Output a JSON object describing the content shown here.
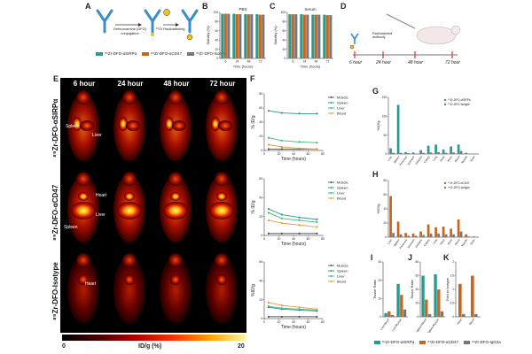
{
  "panels": {
    "A": "A",
    "B": "B",
    "C": "C",
    "D": "D",
    "E": "E",
    "F": "F",
    "G": "G",
    "H": "H",
    "I": "I",
    "J": "J",
    "K": "K"
  },
  "panelA": {
    "step1": "Deferoxamine (DFO)\nconjugation",
    "step2": "⁸⁹Zr Radiolabeling",
    "legend": [
      {
        "label": "⁸⁹Zr-DFO-αSIRPα",
        "color": "#2a9a8f"
      },
      {
        "label": "⁸⁹Zr-DFO-αCD47",
        "color": "#c8651b"
      },
      {
        "label": "⁸⁹Zr-DFO-Isotype",
        "color": "#777777"
      }
    ]
  },
  "panelD": {
    "annotation": "Radiolabeled\nantibody",
    "timepoints": [
      "6 hour",
      "24 hour",
      "48 hour",
      "72 hour"
    ]
  },
  "panelE": {
    "columns": [
      "6 hour",
      "24 hour",
      "48 hour",
      "72 hour"
    ],
    "rows": [
      "⁸⁹Zr-DFO-αSIRPα",
      "⁸⁹Zr-DFO-αCD47",
      "⁸⁹Zr-DFO-Isotype"
    ],
    "organ_labels": {
      "spleen": "Spleen",
      "liver": "Liver",
      "heart": "Heart"
    },
    "colorbar_min": "0",
    "colorbar_max": "20",
    "colorbar_label": "ID/g (%)"
  },
  "panelI_labels": [
    "Liver/Blood",
    "Liver/Muscle"
  ],
  "panelJ_labels": [
    "Spleen/Blood",
    "Spleen/Muscle"
  ],
  "panelK_labels": [
    "Heart",
    "Blood"
  ],
  "bottom_legend": [
    {
      "label": "⁸⁹Zr-DFO-αSIRPα",
      "color": "#2a9a8f"
    },
    {
      "label": "⁸⁹Zr-DFO-αCD47",
      "color": "#c8651b"
    },
    {
      "label": "⁸⁹Zr-DFO-IgG2a",
      "color": "#777777"
    }
  ],
  "chart_data": [
    {
      "id": "B",
      "type": "bar",
      "title": "PBS",
      "xlabel": "Time (hours)",
      "ylabel": "Stability (%)",
      "categories": [
        "6",
        "24",
        "48",
        "72"
      ],
      "ylim": [
        0,
        100
      ],
      "yticks": [
        0,
        20,
        40,
        60,
        80,
        100
      ],
      "series": [
        {
          "name": "αSIRPα",
          "color": "#2a9a8f",
          "values": [
            97,
            97,
            96,
            96
          ]
        },
        {
          "name": "αCD47",
          "color": "#c8651b",
          "values": [
            97,
            96,
            96,
            95
          ]
        },
        {
          "name": "Isotype",
          "color": "#777777",
          "values": [
            97,
            96,
            96,
            95
          ]
        }
      ]
    },
    {
      "id": "C",
      "type": "bar",
      "title": "Serum",
      "xlabel": "Time (hours)",
      "ylabel": "Stability (%)",
      "categories": [
        "6",
        "24",
        "48",
        "72"
      ],
      "ylim": [
        0,
        100
      ],
      "yticks": [
        0,
        20,
        40,
        60,
        80,
        100
      ],
      "series": [
        {
          "name": "αSIRPα",
          "color": "#2a9a8f",
          "values": [
            96,
            96,
            95,
            95
          ]
        },
        {
          "name": "αCD47",
          "color": "#c8651b",
          "values": [
            96,
            95,
            95,
            94
          ]
        },
        {
          "name": "Isotype",
          "color": "#777777",
          "values": [
            96,
            95,
            95,
            94
          ]
        }
      ]
    },
    {
      "id": "F1",
      "type": "line",
      "xlabel": "Time (hours)",
      "ylabel": "% ID/g",
      "xlim": [
        0,
        80
      ],
      "ylim": [
        0,
        80
      ],
      "xticks": [
        0,
        20,
        40,
        60,
        80
      ],
      "yticks": [
        0,
        20,
        40,
        60,
        80
      ],
      "x": [
        6,
        24,
        48,
        72
      ],
      "series": [
        {
          "name": "Muscle",
          "color": "#555555",
          "values": [
            2,
            2,
            2,
            2
          ]
        },
        {
          "name": "Spleen",
          "color": "#2a9a8f",
          "values": [
            56,
            53,
            52,
            52
          ]
        },
        {
          "name": "Liver",
          "color": "#3cb878",
          "values": [
            18,
            14,
            12,
            11
          ]
        },
        {
          "name": "Blood",
          "color": "#e89b3a",
          "values": [
            8,
            5,
            3,
            2
          ]
        }
      ]
    },
    {
      "id": "F2",
      "type": "line",
      "xlabel": "Time (hours)",
      "ylabel": "% ID/g",
      "xlim": [
        0,
        80
      ],
      "ylim": [
        0,
        60
      ],
      "xticks": [
        0,
        20,
        40,
        60,
        80
      ],
      "yticks": [
        0,
        20,
        40,
        60
      ],
      "x": [
        6,
        24,
        48,
        72
      ],
      "series": [
        {
          "name": "Muscle",
          "color": "#555555",
          "values": [
            2,
            2,
            2,
            2
          ]
        },
        {
          "name": "Spleen",
          "color": "#2a9a8f",
          "values": [
            28,
            22,
            19,
            17
          ]
        },
        {
          "name": "Liver",
          "color": "#3cb878",
          "values": [
            24,
            18,
            16,
            14
          ]
        },
        {
          "name": "Blood",
          "color": "#e89b3a",
          "values": [
            16,
            13,
            11,
            9
          ]
        }
      ]
    },
    {
      "id": "F3",
      "type": "line",
      "xlabel": "Time (hours)",
      "ylabel": "%ID/g",
      "xlim": [
        0,
        80
      ],
      "ylim": [
        0,
        60
      ],
      "xticks": [
        0,
        20,
        40,
        60,
        80
      ],
      "yticks": [
        0,
        20,
        40,
        60
      ],
      "x": [
        6,
        24,
        48,
        72
      ],
      "series": [
        {
          "name": "Muscle",
          "color": "#555555",
          "values": [
            2,
            2,
            2,
            2
          ]
        },
        {
          "name": "Spleen",
          "color": "#2a9a8f",
          "values": [
            12,
            10,
            9,
            8
          ]
        },
        {
          "name": "Liver",
          "color": "#3cb878",
          "values": [
            13,
            11,
            10,
            9
          ]
        },
        {
          "name": "Blood",
          "color": "#e89b3a",
          "values": [
            17,
            14,
            12,
            10
          ]
        }
      ]
    },
    {
      "id": "G",
      "type": "bar",
      "ylabel": "%ID/g",
      "ylim": [
        0,
        150
      ],
      "yticks": [
        0,
        50,
        100,
        150
      ],
      "categories": [
        "Liver",
        "Spleen",
        "Pancreas",
        "Stomach",
        "Intestine",
        "Kidney",
        "Lung",
        "Heart",
        "Bone",
        "Blood",
        "Muscle",
        "Brain"
      ],
      "series": [
        {
          "name": "⁸⁹Zr-DFO-αSIRPα",
          "color": "#2a9a8f",
          "values": [
            15,
            130,
            5,
            4,
            10,
            22,
            25,
            12,
            20,
            25,
            3,
            1
          ]
        },
        {
          "name": "⁸⁹Zr-DFO-Isotype",
          "color": "#777777",
          "values": [
            3,
            3,
            2,
            1,
            3,
            4,
            5,
            3,
            4,
            8,
            1,
            0.5
          ]
        }
      ]
    },
    {
      "id": "H",
      "type": "bar",
      "ylabel": "%ID/g",
      "ylim": [
        0,
        80
      ],
      "yticks": [
        0,
        20,
        40,
        60,
        80
      ],
      "categories": [
        "Liver",
        "Spleen",
        "Pancreas",
        "Stomach",
        "Intestine",
        "Kidney",
        "Lung",
        "Heart",
        "Bone",
        "Blood",
        "Muscle",
        "Brain"
      ],
      "series": [
        {
          "name": "⁸⁹Zr-DFO-αCD47",
          "color": "#c8651b",
          "values": [
            58,
            22,
            6,
            5,
            8,
            18,
            14,
            15,
            12,
            25,
            4,
            1
          ]
        },
        {
          "name": "⁸⁹Zr-DFO-Isotype",
          "color": "#777777",
          "values": [
            6,
            4,
            2,
            2,
            3,
            5,
            5,
            4,
            4,
            8,
            1,
            0.5
          ]
        }
      ]
    },
    {
      "id": "I",
      "type": "bar",
      "ylabel": "Tissue Ratio",
      "ylim": [
        0,
        30
      ],
      "yticks": [
        0,
        10,
        20,
        30
      ],
      "categories": [
        "Liver/Blood",
        "Liver/Muscle"
      ],
      "series": [
        {
          "name": "αSIRPα",
          "color": "#2a9a8f",
          "values": [
            2,
            18
          ]
        },
        {
          "name": "αCD47",
          "color": "#c8651b",
          "values": [
            3,
            12
          ]
        },
        {
          "name": "Isotype",
          "color": "#777777",
          "values": [
            1,
            4
          ]
        }
      ]
    },
    {
      "id": "J",
      "type": "bar",
      "ylabel": "Tissue Ratio",
      "ylim": [
        0,
        80
      ],
      "yticks": [
        0,
        20,
        40,
        60,
        80
      ],
      "categories": [
        "Spleen/Blood",
        "Spleen/Muscle"
      ],
      "series": [
        {
          "name": "αSIRPα",
          "color": "#2a9a8f",
          "values": [
            60,
            62
          ]
        },
        {
          "name": "αCD47",
          "color": "#c8651b",
          "values": [
            25,
            40
          ]
        },
        {
          "name": "Isotype",
          "color": "#777777",
          "values": [
            4,
            8
          ]
        }
      ]
    },
    {
      "id": "K",
      "type": "bar",
      "ylabel": "Fold to Isotype",
      "ylim": [
        0,
        2.0
      ],
      "yticks": [
        0,
        0.5,
        1.0,
        1.5,
        2.0
      ],
      "categories": [
        "Heart",
        "Blood"
      ],
      "series": [
        {
          "name": "αCD47",
          "color": "#c8651b",
          "values": [
            1.2,
            1.5
          ]
        },
        {
          "name": "Isotype",
          "color": "#777777",
          "values": [
            0.1,
            0.1
          ]
        }
      ]
    }
  ]
}
